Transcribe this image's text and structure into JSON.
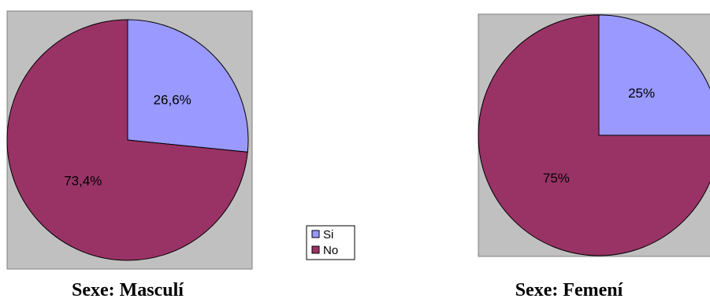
{
  "chart_data": [
    {
      "type": "pie",
      "title": "Sexe: Masculí",
      "slices": [
        {
          "label": "Si",
          "value": 26.6,
          "display": "26,6%",
          "color": "#9999ff"
        },
        {
          "label": "No",
          "value": 73.4,
          "display": "73,4%",
          "color": "#993366"
        }
      ]
    },
    {
      "type": "pie",
      "title": "Sexe: Femení",
      "slices": [
        {
          "label": "Si",
          "value": 25,
          "display": "25%",
          "color": "#9999ff"
        },
        {
          "label": "No",
          "value": 75,
          "display": "75%",
          "color": "#993366"
        }
      ]
    }
  ],
  "legend": {
    "placement": "center",
    "entries": [
      {
        "label": "Si",
        "color": "#9999ff"
      },
      {
        "label": "No",
        "color": "#993366"
      }
    ]
  }
}
